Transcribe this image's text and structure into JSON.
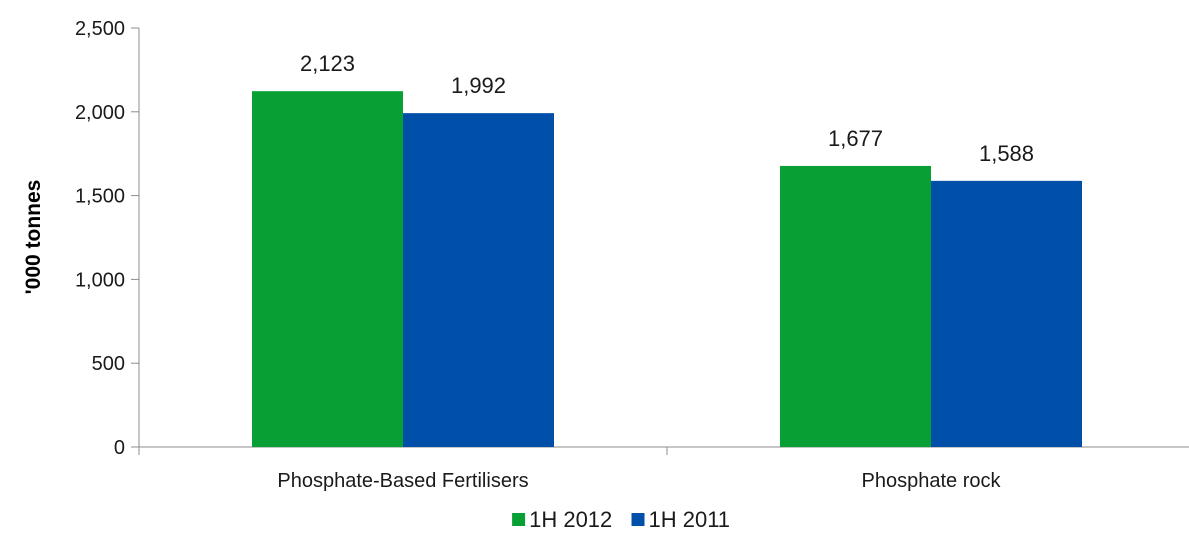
{
  "chart_data": {
    "type": "bar",
    "categories": [
      "Phosphate-Based Fertilisers",
      "Phosphate rock"
    ],
    "series": [
      {
        "name": "1H 2012",
        "values": [
          2123,
          1677
        ],
        "labels": [
          "2,123",
          "1,677"
        ],
        "color": "#08a035"
      },
      {
        "name": "1H 2011",
        "values": [
          1992,
          1588
        ],
        "labels": [
          "1,992",
          "1,588"
        ],
        "color": "#0050aa"
      }
    ],
    "title": "",
    "xlabel": "",
    "ylabel": "'000 tonnes",
    "ylim": [
      0,
      2500
    ],
    "yticks": [
      0,
      500,
      1000,
      1500,
      2000,
      2500
    ],
    "ytick_labels": [
      "0",
      "500",
      "1,000",
      "1,500",
      "2,000",
      "2,500"
    ],
    "grid": false,
    "legend_position": "bottom"
  }
}
